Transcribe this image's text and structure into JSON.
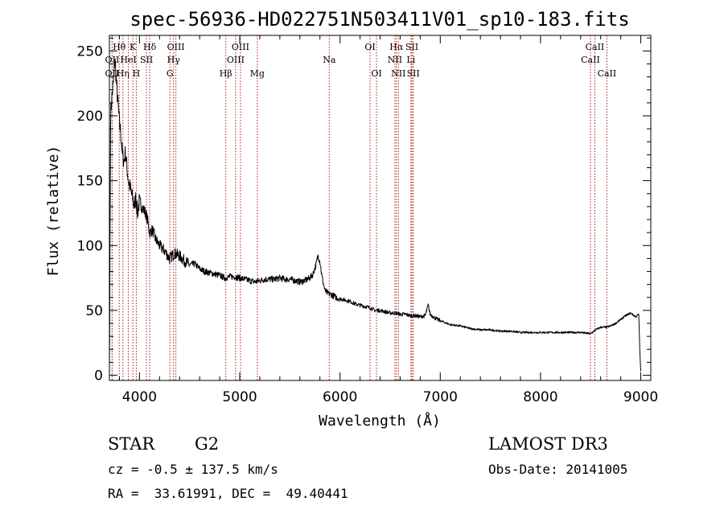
{
  "chart_data": {
    "type": "line",
    "title": "spec-56936-HD022751N503411V01_sp10-183.fits",
    "xlabel": "Wavelength (Å)",
    "ylabel": "Flux (relative)",
    "xlim": [
      3700,
      9100
    ],
    "ylim": [
      -4,
      262
    ],
    "xticks": [
      4000,
      5000,
      6000,
      7000,
      8000,
      9000
    ],
    "xtick_labels": [
      "4000",
      "5000",
      "6000",
      "7000",
      "8000",
      "9000"
    ],
    "yticks": [
      0,
      50,
      100,
      150,
      200,
      250
    ],
    "ytick_labels": [
      "0",
      "50",
      "100",
      "150",
      "200",
      "250"
    ],
    "grid": false,
    "series": [
      {
        "name": "flux",
        "x": [
          3700,
          3712,
          3725,
          3740,
          3755,
          3770,
          3785,
          3800,
          3815,
          3830,
          3845,
          3860,
          3875,
          3890,
          3905,
          3920,
          3935,
          3950,
          3965,
          3980,
          4000,
          4020,
          4040,
          4060,
          4080,
          4100,
          4130,
          4160,
          4200,
          4250,
          4300,
          4350,
          4400,
          4450,
          4500,
          4550,
          4600,
          4650,
          4700,
          4750,
          4800,
          4850,
          4900,
          4950,
          5000,
          5050,
          5100,
          5150,
          5200,
          5250,
          5300,
          5350,
          5400,
          5450,
          5500,
          5550,
          5600,
          5650,
          5700,
          5730,
          5760,
          5780,
          5800,
          5820,
          5850,
          5880,
          5920,
          5960,
          6000,
          6050,
          6100,
          6150,
          6200,
          6250,
          6300,
          6350,
          6400,
          6450,
          6500,
          6550,
          6600,
          6650,
          6700,
          6750,
          6800,
          6850,
          6880,
          6900,
          6950,
          7000,
          7100,
          7200,
          7300,
          7400,
          7500,
          7600,
          7700,
          7800,
          7900,
          8000,
          8100,
          8200,
          8300,
          8400,
          8500,
          8550,
          8600,
          8650,
          8700,
          8750,
          8800,
          8850,
          8900,
          8950,
          8980,
          8990,
          9000
        ],
        "y": [
          0,
          200,
          215,
          225,
          245,
          225,
          210,
          195,
          185,
          170,
          165,
          172,
          160,
          150,
          145,
          140,
          135,
          130,
          138,
          125,
          135,
          130,
          128,
          125,
          120,
          110,
          112,
          105,
          100,
          96,
          90,
          94,
          92,
          88,
          85,
          86,
          82,
          80,
          79,
          78,
          77,
          75,
          76,
          76,
          75,
          74,
          73,
          72,
          73,
          74,
          74,
          74,
          75,
          74,
          74,
          73,
          72,
          73,
          75,
          78,
          85,
          92,
          88,
          76,
          65,
          63,
          62,
          60,
          59,
          58,
          57,
          55,
          54,
          53,
          52,
          50,
          50,
          49,
          48,
          48,
          47,
          47,
          46,
          46,
          45,
          46,
          54,
          47,
          44,
          42,
          39,
          38,
          36,
          35,
          35,
          34,
          34,
          33,
          33,
          33,
          33,
          33,
          33,
          33,
          32,
          35,
          37,
          37,
          38,
          40,
          43,
          46,
          48,
          45,
          47,
          20,
          3
        ]
      }
    ],
    "emission_lines": [
      {
        "label": "Hθ",
        "x": 3798,
        "row": 0
      },
      {
        "label": "K",
        "x": 3934,
        "row": 0
      },
      {
        "label": "Hδ",
        "x": 4102,
        "row": 0
      },
      {
        "label": "OIII",
        "x": 4363,
        "row": 0
      },
      {
        "label": "OIII",
        "x": 5007,
        "row": 0
      },
      {
        "label": "OI",
        "x": 6300,
        "row": 0
      },
      {
        "label": "Hα",
        "x": 6563,
        "row": 0
      },
      {
        "label": "SII",
        "x": 6717,
        "row": 0
      },
      {
        "label": "CaII",
        "x": 8542,
        "row": 0
      },
      {
        "label": "OII",
        "x": 3727,
        "row": 1
      },
      {
        "label": "HeI",
        "x": 3889,
        "row": 1
      },
      {
        "label": "SII",
        "x": 4070,
        "row": 1
      },
      {
        "label": "Hγ",
        "x": 4340,
        "row": 1
      },
      {
        "label": "OIII",
        "x": 4959,
        "row": 1
      },
      {
        "label": "Na",
        "x": 5893,
        "row": 1
      },
      {
        "label": "NII",
        "x": 6548,
        "row": 1
      },
      {
        "label": "Li",
        "x": 6708,
        "row": 1
      },
      {
        "label": "CaII",
        "x": 8498,
        "row": 1
      },
      {
        "label": "OII",
        "x": 3727,
        "row": 2
      },
      {
        "label": "Hη",
        "x": 3835,
        "row": 2
      },
      {
        "label": "H",
        "x": 3968,
        "row": 2
      },
      {
        "label": "G",
        "x": 4304,
        "row": 2
      },
      {
        "label": "Hβ",
        "x": 4861,
        "row": 2
      },
      {
        "label": "Mg",
        "x": 5175,
        "row": 2
      },
      {
        "label": "OI",
        "x": 6364,
        "row": 2
      },
      {
        "label": "NII",
        "x": 6583,
        "row": 2
      },
      {
        "label": "SII",
        "x": 6731,
        "row": 2
      },
      {
        "label": "CaII",
        "x": 8662,
        "row": 2
      }
    ]
  },
  "info": {
    "object_type": "STAR",
    "subclass": "G2",
    "survey": "LAMOST DR3",
    "redshift": "cz = -0.5 ± 137.5 km/s",
    "obs_date": "Obs-Date: 20141005",
    "coords": "RA =  33.61991, DEC =  49.40441"
  }
}
